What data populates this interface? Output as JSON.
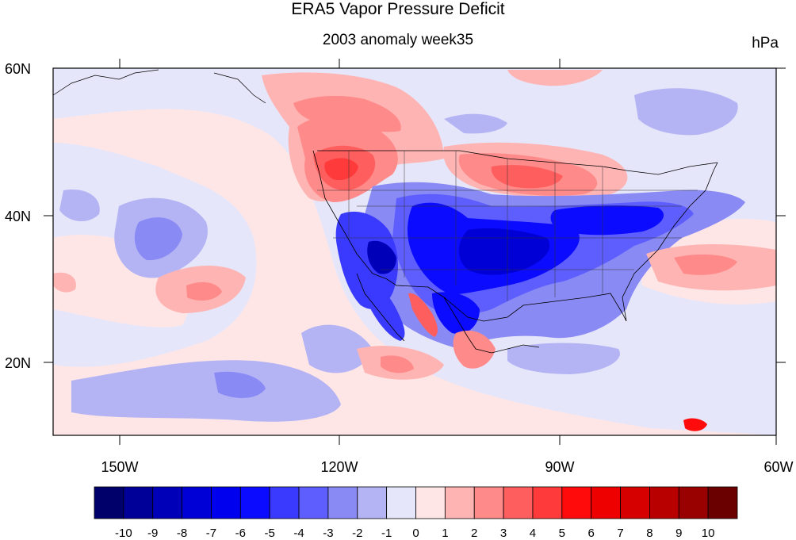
{
  "title": "ERA5 Vapor Pressure Deficit",
  "subtitle": "2003 anomaly week35",
  "units": "hPa",
  "axes": {
    "lon_labels": [
      "150W",
      "120W",
      "90W",
      "60W"
    ],
    "lat_labels": [
      "60N",
      "40N",
      "20N"
    ]
  },
  "colorbar": {
    "labels": [
      "-10",
      "-9",
      "-8",
      "-7",
      "-6",
      "-5",
      "-4",
      "-3",
      "-2",
      "-1",
      "0",
      "1",
      "2",
      "3",
      "4",
      "5",
      "6",
      "7",
      "8",
      "9",
      "10"
    ],
    "colors": [
      "#00006b",
      "#000099",
      "#0000b8",
      "#0000d6",
      "#0000ee",
      "#0b0bff",
      "#3a3aff",
      "#5e5eff",
      "#8a8af5",
      "#b4b4f5",
      "#e6e6fa",
      "#ffe6e6",
      "#ffb4b4",
      "#ff8a8a",
      "#ff5e5e",
      "#ff3a3a",
      "#ff0b0b",
      "#ee0000",
      "#d60000",
      "#b80000",
      "#990000",
      "#6b0000"
    ]
  },
  "map": {
    "extent": {
      "lon": [
        -160,
        -60
      ],
      "lat": [
        10,
        60
      ]
    },
    "background_color": "#e6e6fa",
    "features": [
      {
        "name": "us-southwest-drying",
        "color": "#0000ee"
      },
      {
        "name": "us-central-drying",
        "color": "#0000d6"
      },
      {
        "name": "us-east-drying",
        "color": "#3a3aff"
      },
      {
        "name": "pacific-northwest-heat",
        "color": "#ff3a3a"
      },
      {
        "name": "canada-heat",
        "color": "#ff8a8a"
      },
      {
        "name": "great-lakes-heat",
        "color": "#ff5e5e"
      },
      {
        "name": "baja-heat",
        "color": "#ff3a3a"
      },
      {
        "name": "mexico-heat",
        "color": "#ff5e5e"
      },
      {
        "name": "atlantic-heat",
        "color": "#ff8a8a"
      },
      {
        "name": "pacific-cool",
        "color": "#8a8af5"
      },
      {
        "name": "caribbean-heat",
        "color": "#ff0b0b"
      }
    ]
  }
}
